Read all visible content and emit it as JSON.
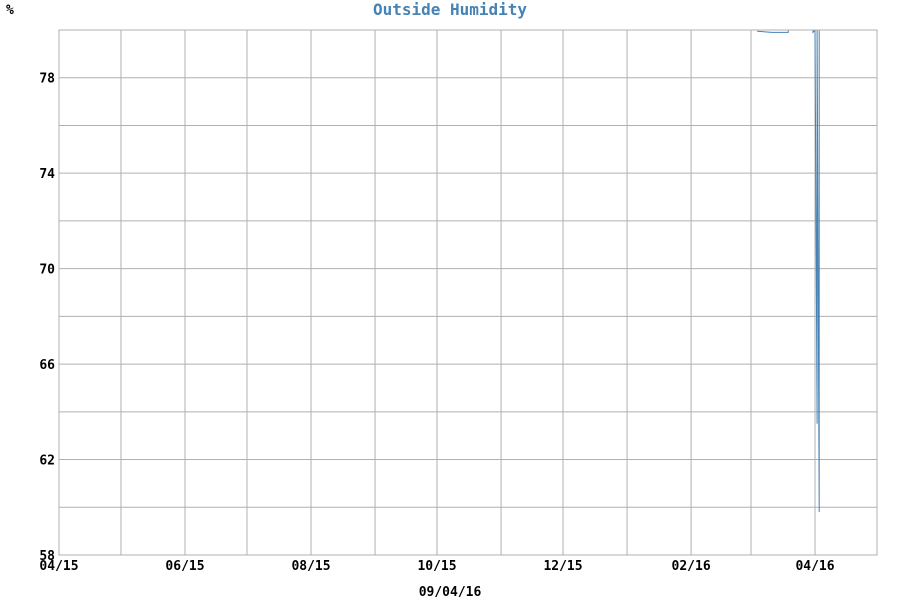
{
  "chart_data": {
    "type": "line",
    "title": "Outside Humidity",
    "ylabel": "%",
    "xlabel": "09/04/16",
    "ylim": [
      58,
      80
    ],
    "y_ticks": [
      58,
      62,
      66,
      70,
      74,
      78
    ],
    "x_start": "2015-04-15",
    "x_end": "2016-05-15",
    "x_tick_dates": [
      "2015-04-15",
      "2015-05-15",
      "2015-06-15",
      "2015-07-15",
      "2015-08-15",
      "2015-09-15",
      "2015-10-15",
      "2015-11-15",
      "2015-12-15",
      "2016-01-15",
      "2016-02-15",
      "2016-03-15",
      "2016-04-15"
    ],
    "x_tick_labels": [
      "04/15",
      "",
      "06/15",
      "",
      "08/15",
      "",
      "10/15",
      "",
      "12/15",
      "",
      "02/16",
      "",
      "04/16"
    ],
    "grid": true,
    "colors": {
      "series": "#4682b4",
      "title": "#4682b4",
      "grid": "#b0b0b0"
    },
    "series": [
      {
        "color": "#4682b4",
        "points": [
          [
            "2016-03-18",
            79.95
          ],
          [
            "2016-03-25",
            79.9
          ],
          [
            "2016-04-02",
            79.9
          ],
          [
            "2016-04-02",
            80.0
          ],
          [
            "2016-04-14",
            80.0
          ],
          [
            "2016-04-14",
            79.9
          ],
          [
            "2016-04-15",
            80.0
          ],
          [
            "2016-04-16",
            63.5
          ],
          [
            "2016-04-16",
            80.0
          ],
          [
            "2016-04-17",
            59.8
          ],
          [
            "2016-04-17",
            80.0
          ],
          [
            "2016-04-20",
            80.0
          ]
        ]
      }
    ]
  }
}
